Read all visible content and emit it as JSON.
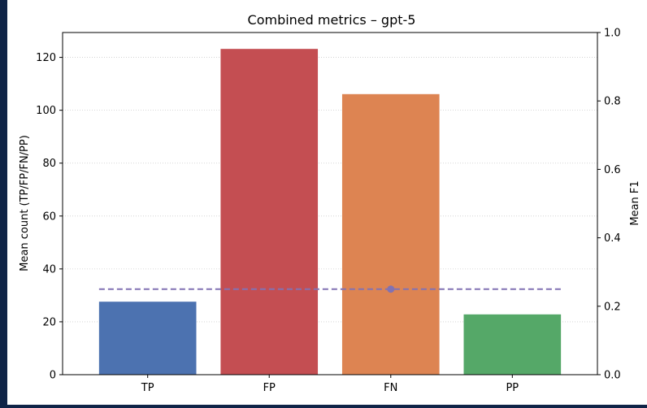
{
  "chart_data": {
    "type": "bar",
    "title": "Combined metrics – gpt-5",
    "xlabel": "",
    "ylabel": "Mean count (TP/FP/FN/PP)",
    "y2label": "Mean F1",
    "categories": [
      "TP",
      "FP",
      "FN",
      "PP"
    ],
    "values": [
      27.6,
      123.2,
      106.1,
      22.8
    ],
    "bar_colors": [
      "#4c72b0",
      "#c44e52",
      "#dd8452",
      "#55a868"
    ],
    "ylim": [
      0,
      129.4
    ],
    "yticks": [
      0,
      20,
      40,
      60,
      80,
      100,
      120
    ],
    "y2lim": [
      0,
      1
    ],
    "y2ticks": [
      0.0,
      0.2,
      0.4,
      0.6,
      0.8,
      1.0
    ],
    "f1": {
      "value": 0.25,
      "marker_category": "FN",
      "color": "#8172b3",
      "style": "dashed"
    },
    "grid": "horizontal dotted",
    "legend": "none"
  }
}
